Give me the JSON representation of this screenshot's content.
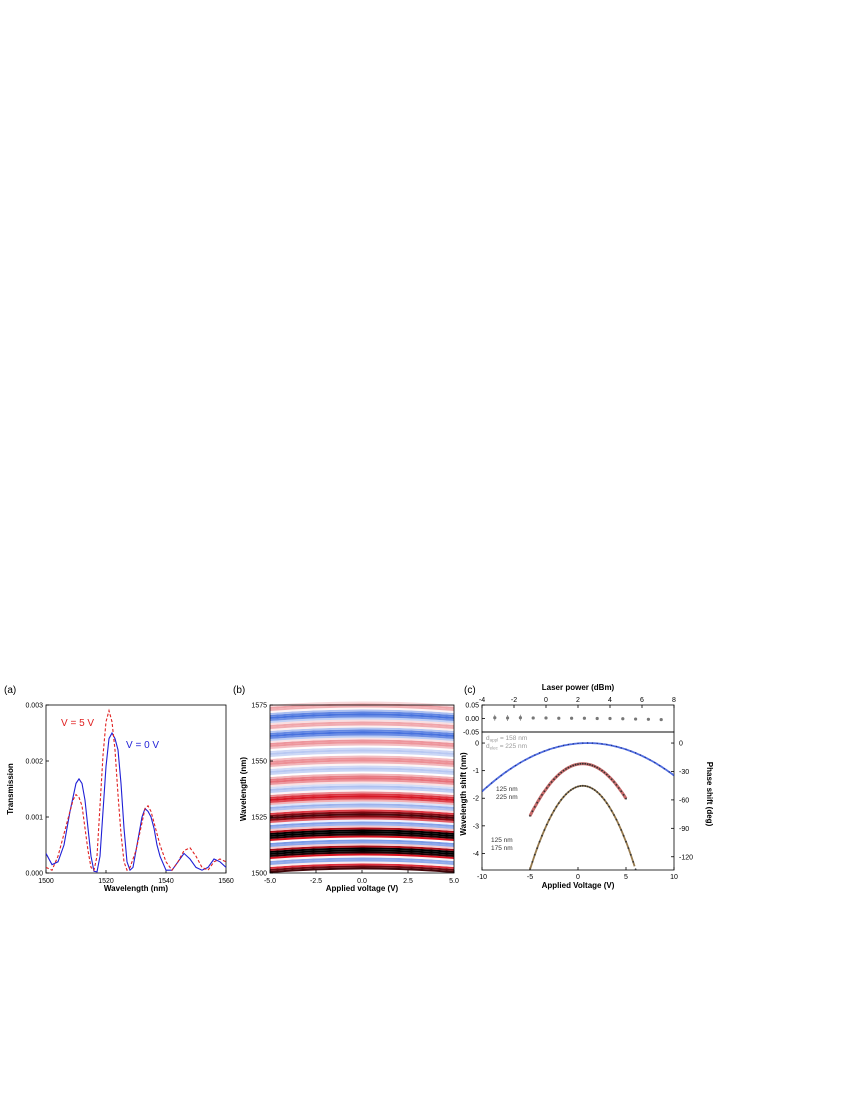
{
  "panels": [
    {
      "label": "(a)"
    },
    {
      "label": "(b)"
    },
    {
      "label": "(c)"
    }
  ],
  "chart_data": [
    {
      "panel": "(a)",
      "type": "line",
      "title": "",
      "xlabel": "Wavelength (nm)",
      "ylabel": "Transmission",
      "xlim": [
        1500,
        1560
      ],
      "ylim": [
        0,
        0.003
      ],
      "xticks": [
        "1500",
        "1520",
        "1540",
        "1560"
      ],
      "yticks": [
        "0.000",
        "0.001",
        "0.002",
        "0.003"
      ],
      "series": [
        {
          "name": "V = 0 V",
          "color": "#1f1fd6",
          "style": "solid",
          "x": [
            1500,
            1502,
            1504,
            1506,
            1508,
            1510,
            1511,
            1512,
            1513,
            1514,
            1515,
            1516,
            1517,
            1518,
            1519,
            1520,
            1521,
            1522,
            1523,
            1524,
            1525,
            1526,
            1527,
            1528,
            1529,
            1530,
            1531,
            1532,
            1533,
            1534,
            1535,
            1536,
            1537,
            1538,
            1540,
            1542,
            1544,
            1546,
            1548,
            1550,
            1552,
            1554,
            1556,
            1558,
            1560
          ],
          "y": [
            0.00035,
            0.00015,
            0.0002,
            0.0005,
            0.0011,
            0.0016,
            0.00168,
            0.0016,
            0.0013,
            0.0008,
            0.0003,
            3e-05,
            2e-05,
            0.0003,
            0.0011,
            0.0019,
            0.0024,
            0.0025,
            0.0024,
            0.0022,
            0.0016,
            0.0008,
            0.0002,
            5e-05,
            0.0001,
            0.0004,
            0.0007,
            0.001,
            0.00115,
            0.0011,
            0.001,
            0.0008,
            0.0005,
            0.0003,
            5e-05,
            5e-05,
            0.0002,
            0.00035,
            0.00025,
            0.0001,
            5e-05,
            0.0001,
            0.00025,
            0.0002,
            0.0001
          ]
        },
        {
          "name": "V = 5 V",
          "color": "#e02020",
          "style": "dashed",
          "x": [
            1500,
            1502,
            1504,
            1506,
            1508,
            1509,
            1510,
            1511,
            1512,
            1513,
            1514,
            1515,
            1516,
            1517,
            1518,
            1519,
            1520,
            1521,
            1522,
            1523,
            1524,
            1525,
            1526,
            1527,
            1528,
            1530,
            1532,
            1533,
            1534,
            1535,
            1536,
            1538,
            1540,
            1542,
            1544,
            1546,
            1548,
            1550,
            1552,
            1554,
            1556,
            1558,
            1560
          ],
          "y": [
            0.0001,
            5e-05,
            0.0003,
            0.0007,
            0.0011,
            0.0013,
            0.0014,
            0.00135,
            0.0012,
            0.0008,
            0.0004,
            0.0001,
            5e-05,
            0.0003,
            0.0012,
            0.0021,
            0.0027,
            0.0029,
            0.0027,
            0.0022,
            0.0014,
            0.0007,
            0.0002,
            5e-05,
            0.0001,
            0.0004,
            0.0009,
            0.00115,
            0.0012,
            0.0011,
            0.0009,
            0.0005,
            0.0002,
            5e-05,
            0.0002,
            0.0004,
            0.00045,
            0.0003,
            0.0001,
            5e-05,
            0.0002,
            0.00025,
            0.0002
          ]
        }
      ],
      "annotations": [
        {
          "text": "V = 5 V",
          "color": "#e02020"
        },
        {
          "text": "V = 0 V",
          "color": "#1f1fd6"
        }
      ]
    },
    {
      "panel": "(b)",
      "type": "heatmap",
      "title": "",
      "xlabel": "Applied voltage (V)",
      "ylabel": "Wavelength (nm)",
      "xlim": [
        -5,
        5
      ],
      "ylim": [
        1500,
        1575
      ],
      "xticks": [
        "-5.0",
        "-2.5",
        "0.0",
        "2.5",
        "5.0"
      ],
      "yticks": [
        "1500",
        "1525",
        "1550",
        "1575"
      ],
      "colors": {
        "low": "#1a4fd6",
        "mid": "#ffffff",
        "high": "#d6101e",
        "max": "#000000"
      }
    },
    {
      "panel": "(c)",
      "type": "scatter",
      "title": "",
      "top_plot": {
        "xlabel": "Laser power (dBm)",
        "xlim": [
          -4,
          8
        ],
        "ylim": [
          -0.05,
          0.05
        ],
        "xticks": [
          "-4",
          "-2",
          "0",
          "2",
          "4",
          "6",
          "8"
        ],
        "yticks": [
          "0.05",
          "0.00",
          "-0.05"
        ],
        "points": {
          "x": [
            -3.2,
            -2.4,
            -1.6,
            -0.8,
            0,
            0.8,
            1.6,
            2.4,
            3.2,
            4,
            4.8,
            5.6,
            6.4,
            7.2
          ],
          "y": [
            0.003,
            0.002,
            0.003,
            0.002,
            0.002,
            0.001,
            0.001,
            0.001,
            0.0,
            0.0,
            -0.001,
            -0.002,
            -0.003,
            -0.004
          ]
        }
      },
      "main_plot": {
        "xlabel": "Applied Voltage (V)",
        "ylabel": "Wavelength shift (nm)",
        "ylabel_right": "Phase shift (deg)",
        "xlim": [
          -10,
          10
        ],
        "ylim": [
          -4.6,
          0.4
        ],
        "xticks": [
          "-10",
          "-5",
          "0",
          "5",
          "10"
        ],
        "yticks": [
          "0",
          "-1",
          "-2",
          "-3",
          "-4"
        ],
        "yticks_right": [
          "0",
          "-30",
          "-60",
          "-90",
          "-120"
        ],
        "series": [
          {
            "name": "",
            "color": "#3355dd",
            "a": 0.0145,
            "v0": 1.0,
            "c": 0.0,
            "xrange": [
              -10,
              10
            ]
          },
          {
            "name": "",
            "color": "#c05a5a",
            "a": 0.0625,
            "v0": 0.5,
            "c": -0.75,
            "xrange": [
              -5,
              5
            ]
          },
          {
            "name": "",
            "color": "#8a6a3a",
            "a": 0.1,
            "v0": 0.5,
            "c": -1.55,
            "xrange": [
              -6.5,
              6.0
            ]
          }
        ],
        "labels": [
          {
            "text": "d",
            "sub": "appl",
            "rest": " = 158 nm",
            "color": "#999999"
          },
          {
            "text": "d",
            "sub": "elec",
            "rest": " = 225 nm",
            "color": "#999999"
          },
          {
            "text": "125 nm",
            "color": "#333333"
          },
          {
            "text": "225 nm",
            "color": "#333333"
          },
          {
            "text": "125 nm",
            "color": "#333333"
          },
          {
            "text": "175 nm",
            "color": "#333333"
          }
        ]
      }
    }
  ]
}
